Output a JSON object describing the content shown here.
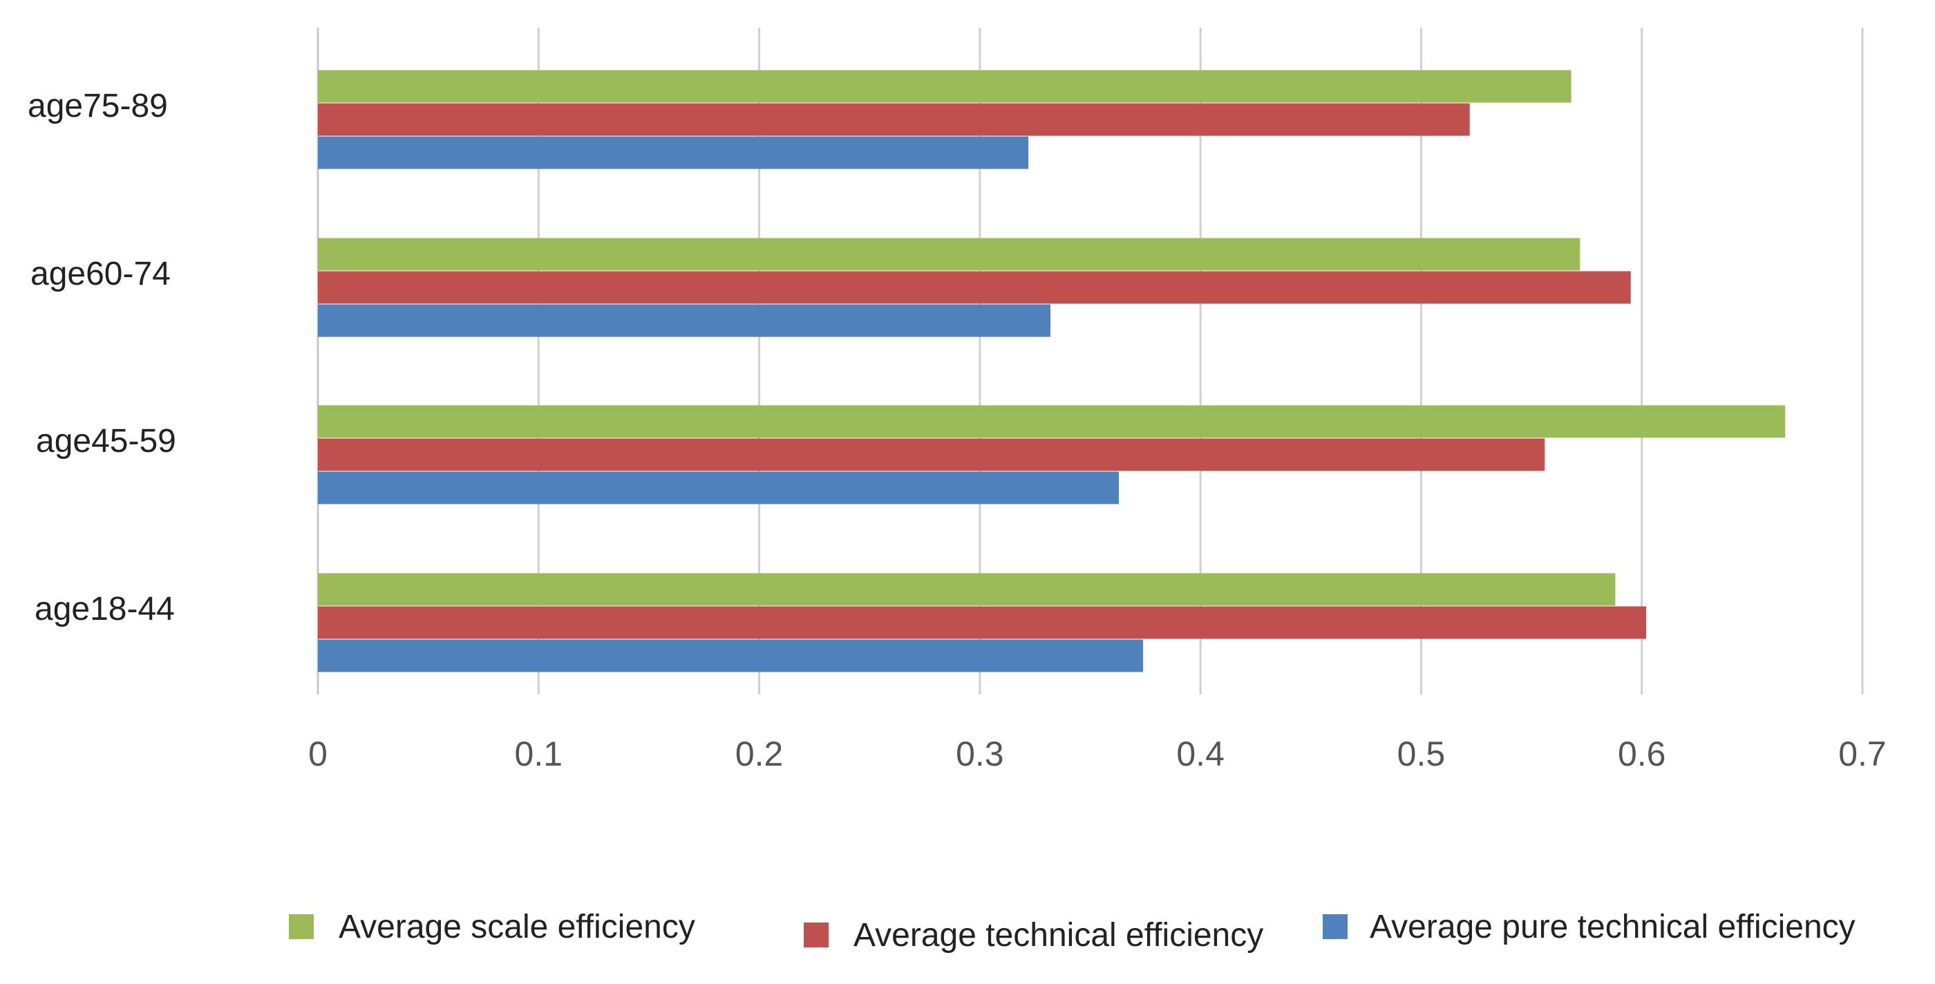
{
  "chart_data": {
    "type": "bar",
    "orientation": "horizontal",
    "title": "",
    "xlabel": "",
    "ylabel": "",
    "xlim": [
      0,
      0.7
    ],
    "x_ticks": [
      "0",
      "0.1",
      "0.2",
      "0.3",
      "0.4",
      "0.5",
      "0.6",
      "0.7"
    ],
    "x_tick_values": [
      0,
      0.1,
      0.2,
      0.3,
      0.4,
      0.5,
      0.6,
      0.7
    ],
    "grid": true,
    "legend_position": "bottom",
    "categories": [
      "age18-44",
      "age45-59",
      "age60-74",
      "age75-89"
    ],
    "series": [
      {
        "name": "Average pure technical efficiency",
        "color": "#4F81BD",
        "values": [
          0.374,
          0.363,
          0.332,
          0.322
        ]
      },
      {
        "name": "Average technical efficiency",
        "color": "#C0504D",
        "values": [
          0.602,
          0.556,
          0.595,
          0.522
        ]
      },
      {
        "name": "Average scale efficiency",
        "color": "#9BBB59",
        "values": [
          0.588,
          0.665,
          0.572,
          0.568
        ]
      }
    ],
    "legend_order": [
      "Average scale efficiency",
      "Average technical efficiency",
      "Average pure technical efficiency"
    ]
  }
}
